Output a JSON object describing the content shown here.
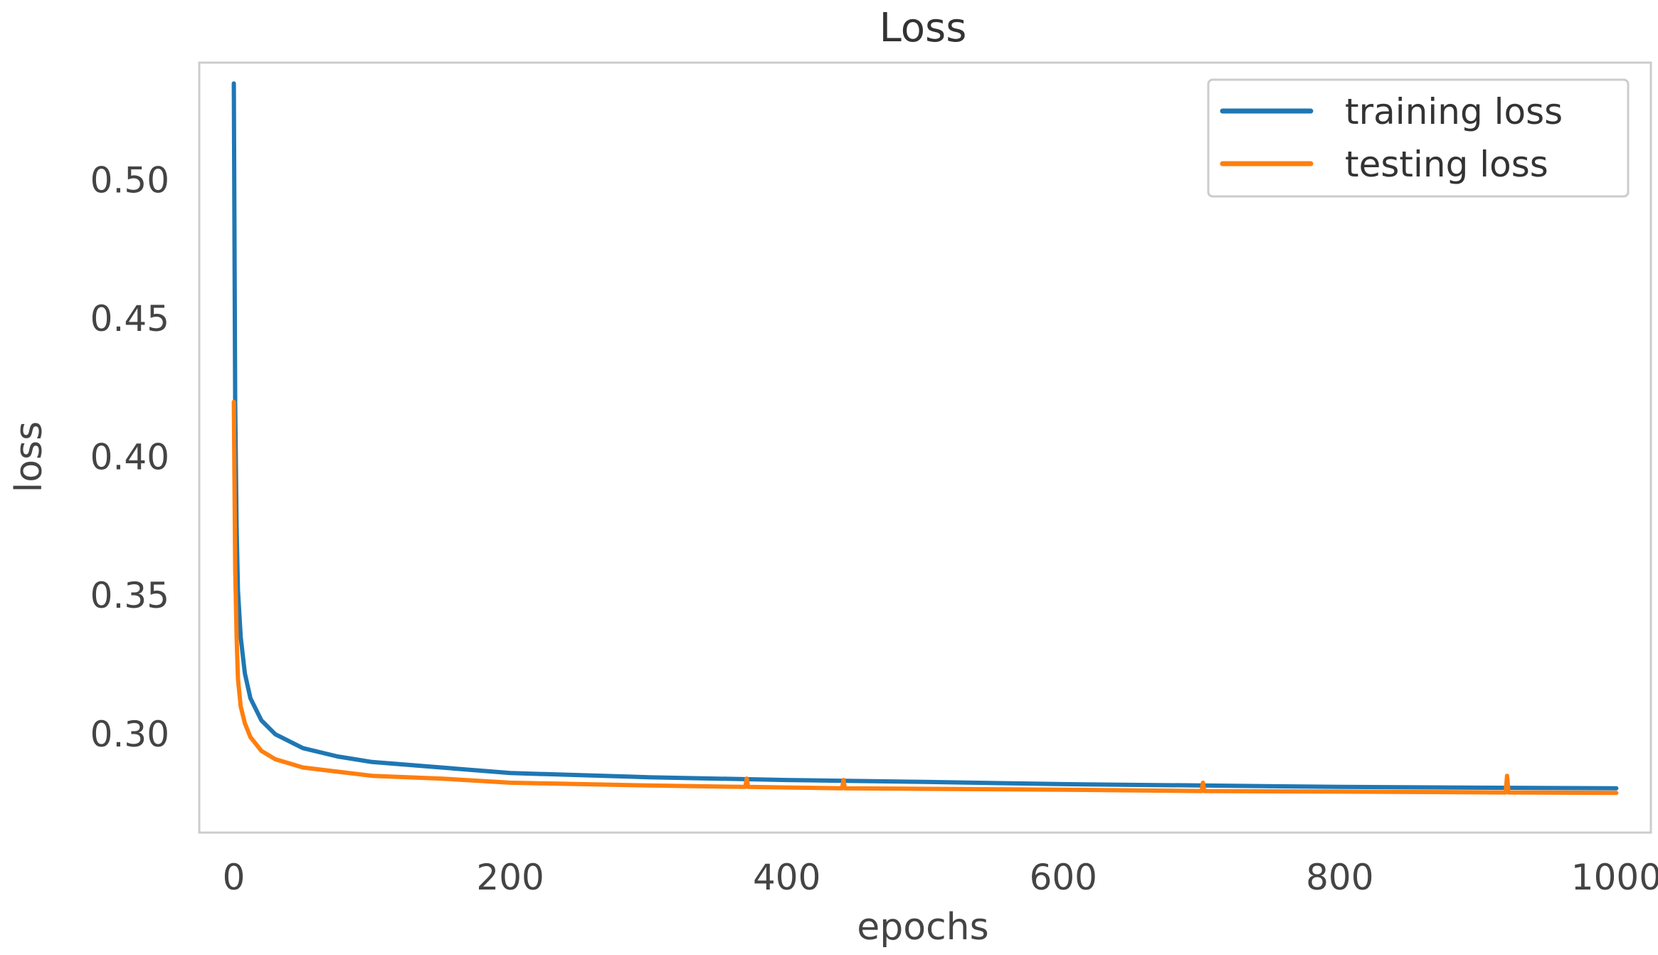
{
  "chart_data": {
    "type": "line",
    "title": "Loss",
    "xlabel": "epochs",
    "ylabel": "loss",
    "xlim": [
      -25,
      1025
    ],
    "ylim": [
      0.2645,
      0.5425
    ],
    "xticks": [
      {
        "value": 0,
        "label": "0"
      },
      {
        "value": 200,
        "label": "200"
      },
      {
        "value": 400,
        "label": "400"
      },
      {
        "value": 600,
        "label": "600"
      },
      {
        "value": 800,
        "label": "800"
      },
      {
        "value": 1000,
        "label": "1000"
      }
    ],
    "yticks": [
      {
        "value": 0.3,
        "label": "0.30"
      },
      {
        "value": 0.35,
        "label": "0.35"
      },
      {
        "value": 0.4,
        "label": "0.40"
      },
      {
        "value": 0.45,
        "label": "0.45"
      },
      {
        "value": 0.5,
        "label": "0.50"
      }
    ],
    "grid": false,
    "legend_position": "top-right",
    "series": [
      {
        "name": "training loss",
        "color": "#1f77b4",
        "x": [
          0,
          1,
          2,
          3,
          5,
          8,
          12,
          20,
          30,
          50,
          75,
          100,
          150,
          200,
          300,
          400,
          500,
          600,
          700,
          800,
          900,
          1000
        ],
        "y": [
          0.535,
          0.42,
          0.375,
          0.352,
          0.335,
          0.322,
          0.313,
          0.305,
          0.3,
          0.295,
          0.292,
          0.29,
          0.288,
          0.286,
          0.2845,
          0.2835,
          0.2828,
          0.282,
          0.2815,
          0.281,
          0.2807,
          0.2805
        ]
      },
      {
        "name": "testing loss",
        "color": "#ff7f0e",
        "x": [
          0,
          1,
          2,
          3,
          5,
          8,
          12,
          20,
          30,
          50,
          75,
          100,
          150,
          200,
          300,
          370,
          371,
          372,
          400,
          440,
          441,
          442,
          500,
          600,
          700,
          701,
          702,
          800,
          920,
          921,
          922,
          1000
        ],
        "y": [
          0.42,
          0.36,
          0.335,
          0.32,
          0.31,
          0.304,
          0.299,
          0.294,
          0.291,
          0.288,
          0.2865,
          0.285,
          0.284,
          0.2825,
          0.2815,
          0.281,
          0.284,
          0.281,
          0.2808,
          0.2805,
          0.2835,
          0.2805,
          0.2803,
          0.28,
          0.2795,
          0.2825,
          0.2795,
          0.2793,
          0.279,
          0.285,
          0.279,
          0.2788
        ]
      }
    ]
  }
}
